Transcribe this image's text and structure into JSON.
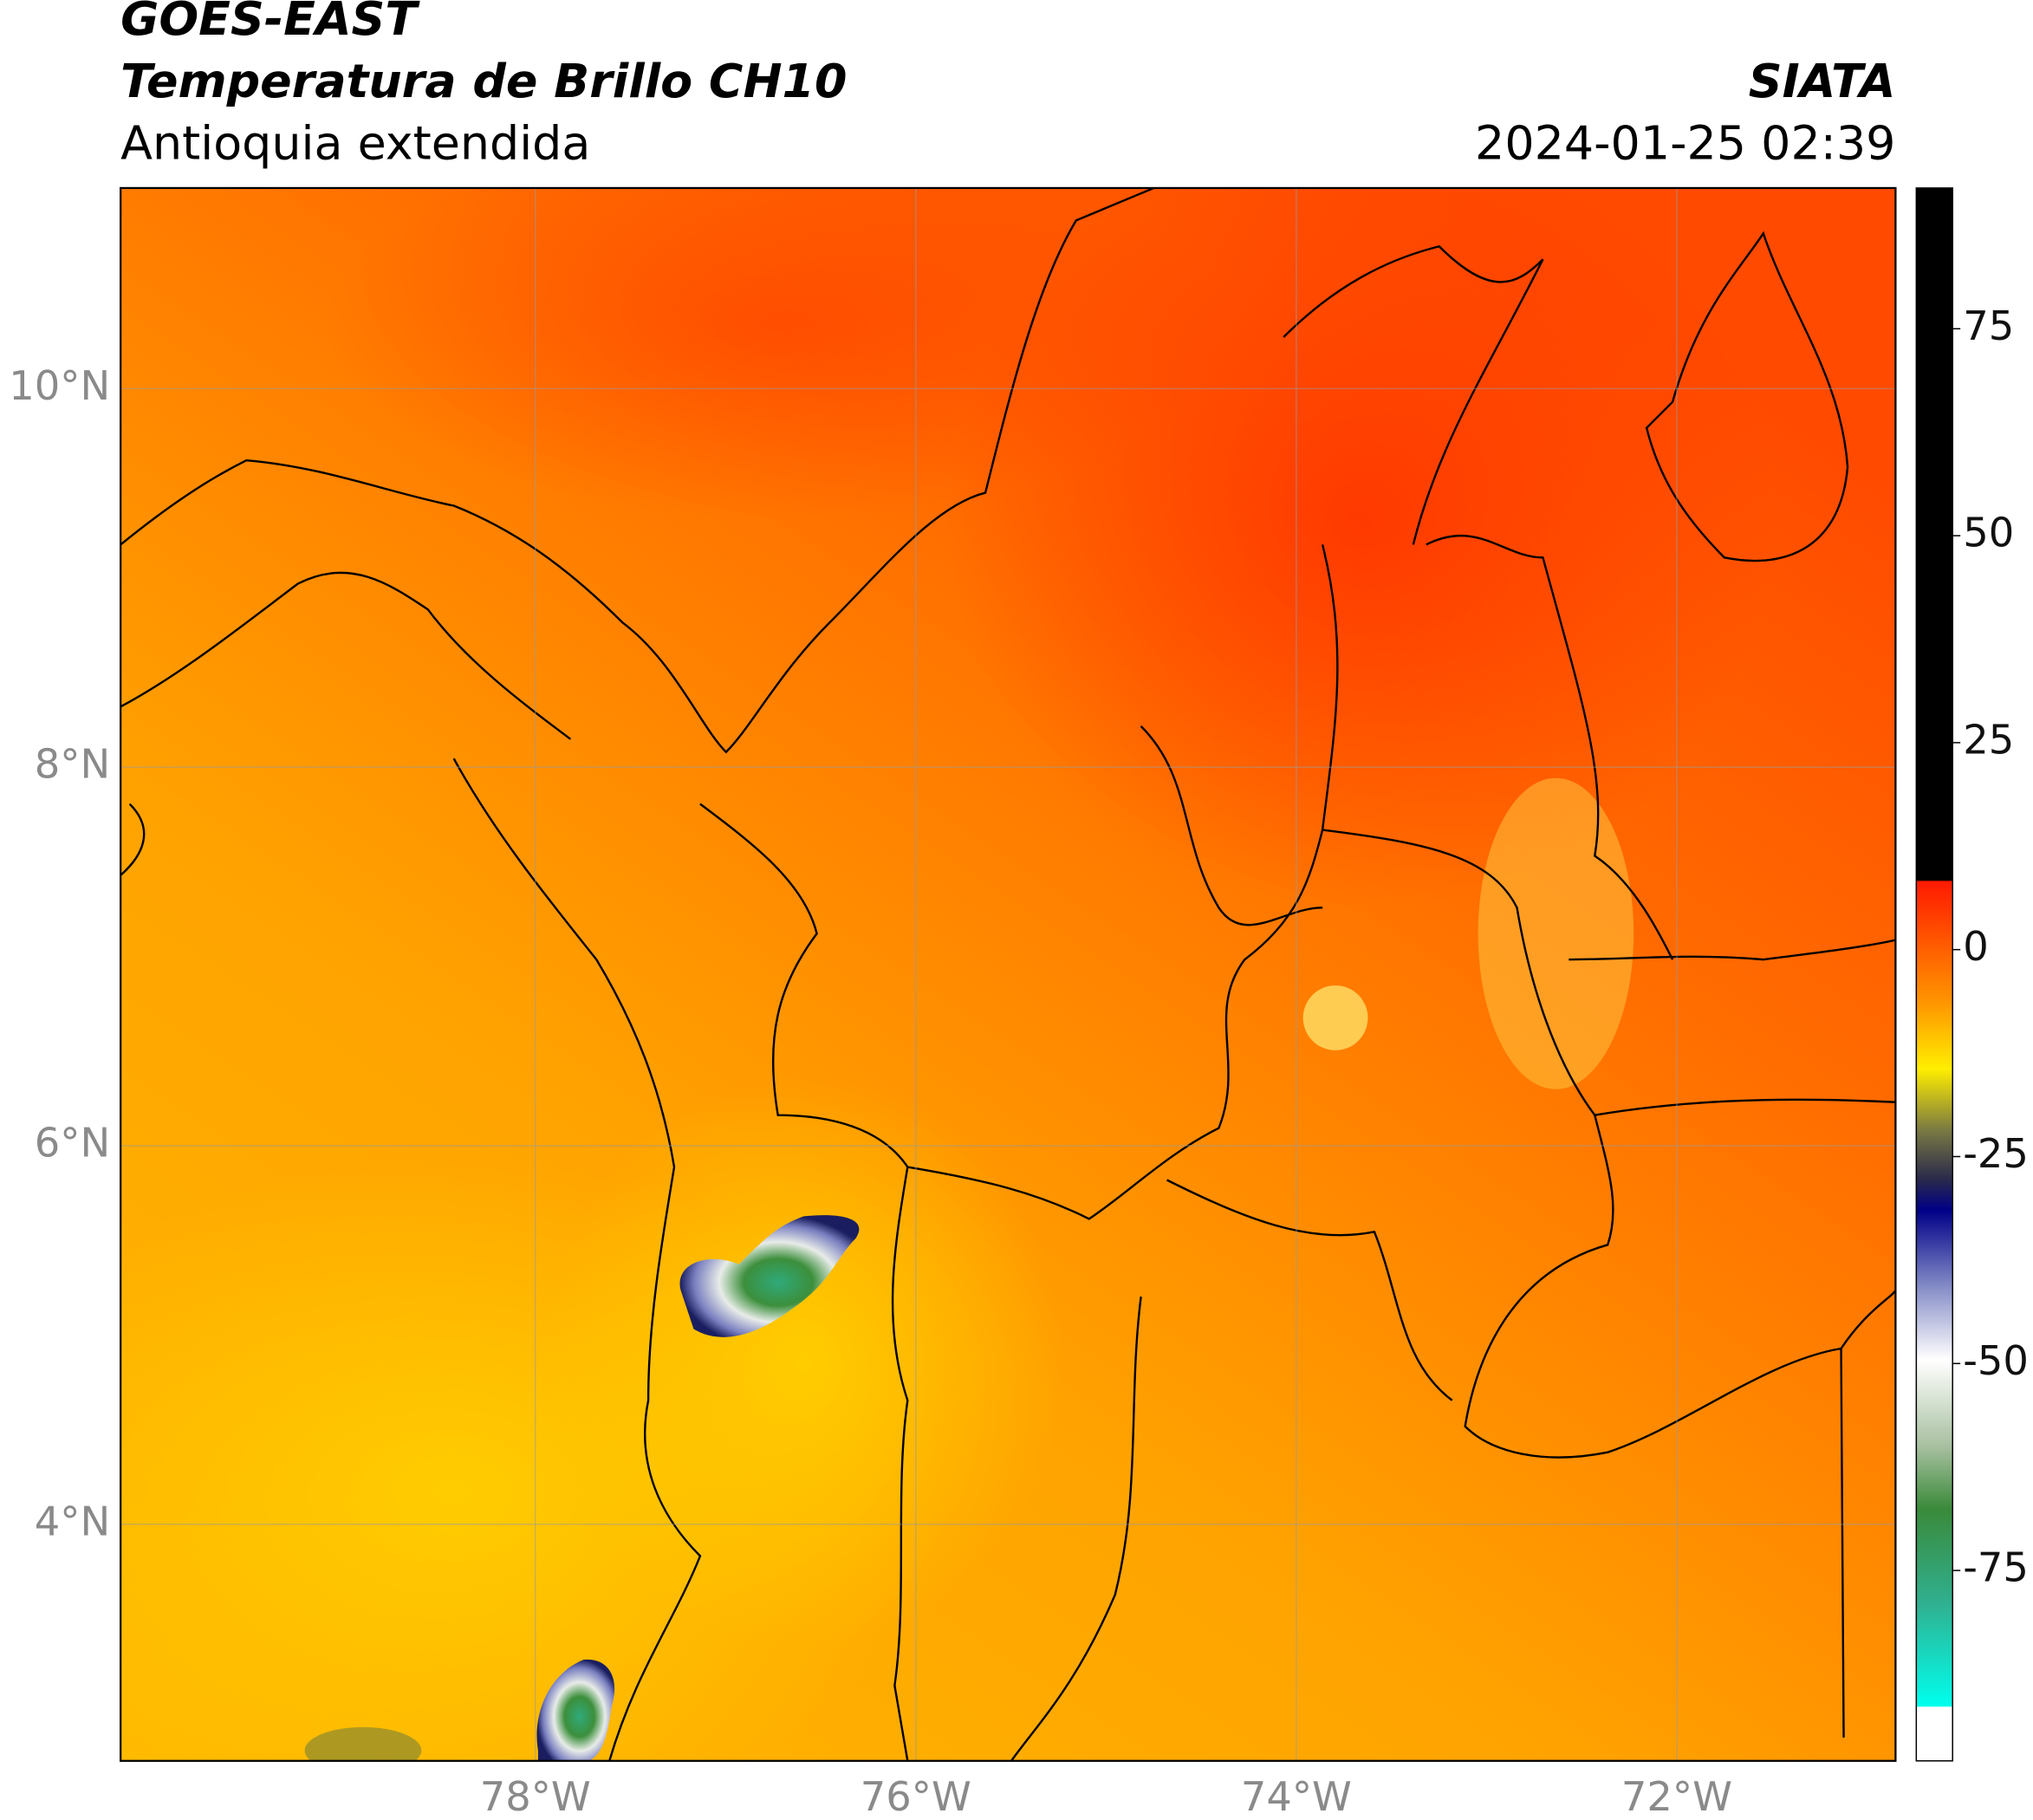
{
  "header": {
    "title": "GOES-EAST",
    "subtitle": "Temperatura de Brillo CH10",
    "region": "Antioquia extendida",
    "source": "SIATA",
    "datetime": "2024-01-25 02:39"
  },
  "map": {
    "latlim": [
      2.75,
      11.06
    ],
    "lonlim": [
      -80.18,
      -70.85
    ],
    "lat_ticks": [
      {
        "value": 10,
        "label": "10°N"
      },
      {
        "value": 8,
        "label": "8°N"
      },
      {
        "value": 6,
        "label": "6°N"
      },
      {
        "value": 4,
        "label": "4°N"
      }
    ],
    "lon_ticks": [
      {
        "value": -78,
        "label": "78°W"
      },
      {
        "value": -76,
        "label": "76°W"
      },
      {
        "value": -74,
        "label": "74°W"
      },
      {
        "value": -72,
        "label": "72°W"
      }
    ]
  },
  "colorbar": {
    "ylim": [
      -98,
      92
    ],
    "ticks": [
      75,
      50,
      25,
      0,
      -25,
      -50,
      -75
    ]
  }
}
